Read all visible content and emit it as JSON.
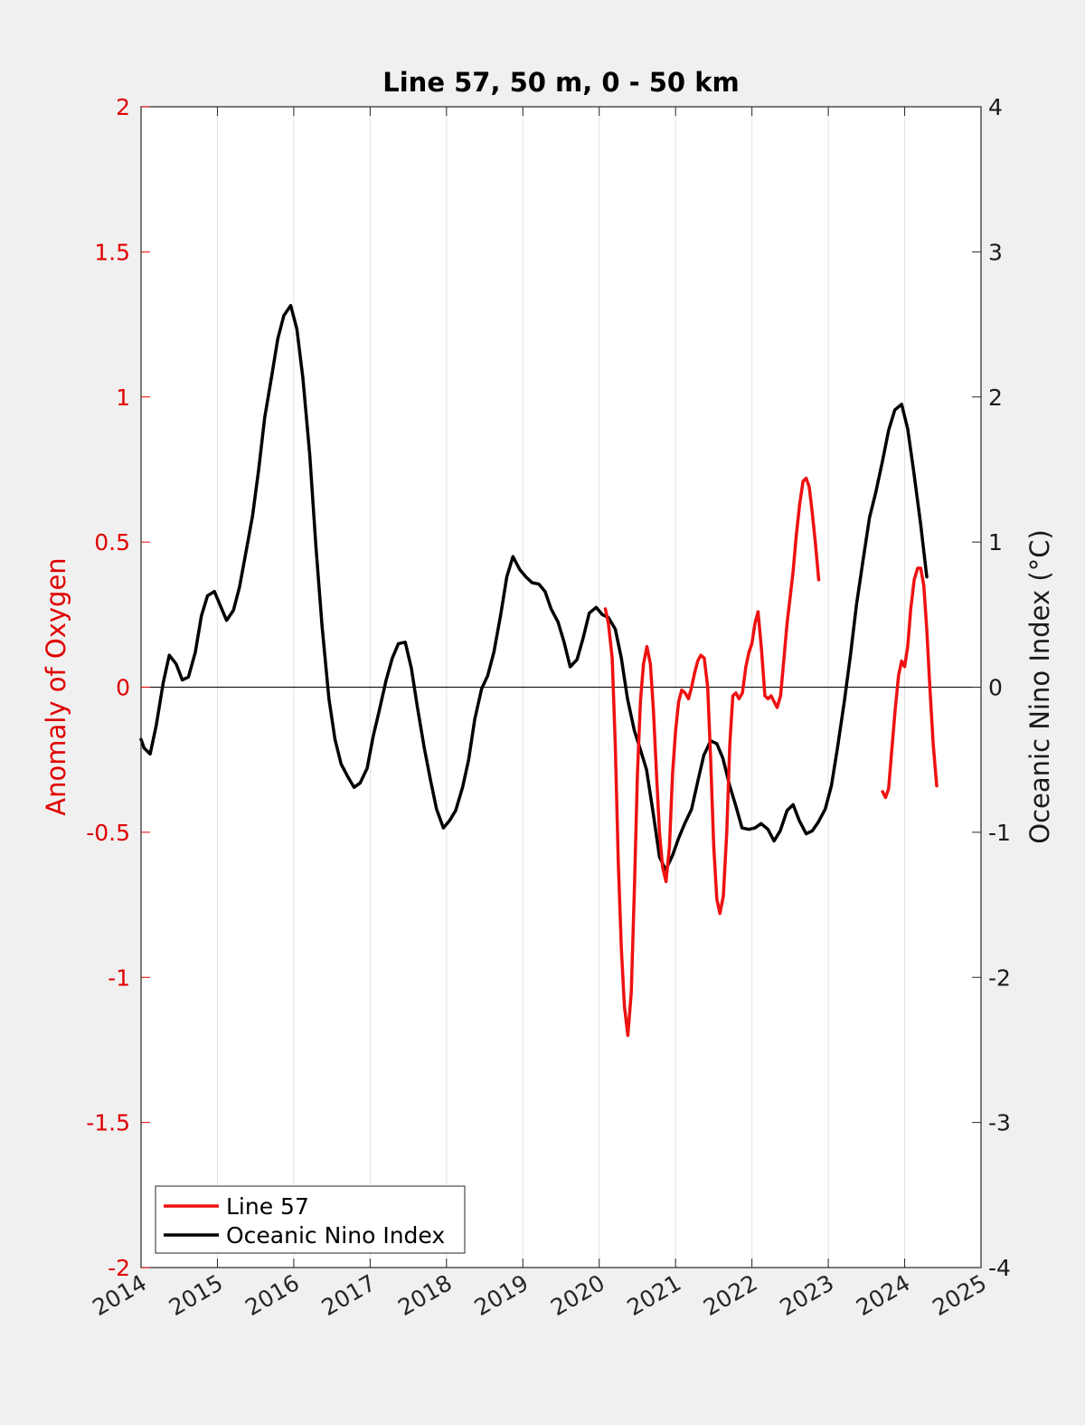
{
  "chart_data": {
    "type": "line",
    "title": "Line 57, 50 m, 0 - 50 km",
    "xlabel": "",
    "ylabel_left": "Anomaly of Oxygen",
    "ylabel_right": "Oceanic Nino Index (°C)",
    "xlim": [
      2014,
      2025
    ],
    "ylim_left": [
      -2,
      2
    ],
    "ylim_right": [
      -4,
      4
    ],
    "x_ticks": [
      "2014",
      "2015",
      "2016",
      "2017",
      "2018",
      "2019",
      "2020",
      "2021",
      "2022",
      "2023",
      "2024",
      "2025"
    ],
    "y_ticks_left": [
      "2",
      "1.5",
      "1",
      "0.5",
      "0",
      "-0.5",
      "-1",
      "-1.5",
      "-2"
    ],
    "y_ticks_right": [
      "4",
      "3",
      "2",
      "1",
      "0",
      "-1",
      "-2",
      "-3",
      "-4"
    ],
    "grid": "x-major",
    "zero_line": true,
    "legend": {
      "location": "bottom-left",
      "entries": [
        "Line 57",
        "Oceanic Nino Index"
      ]
    },
    "colors": {
      "line57": "#ee1111",
      "oni": "#000000",
      "left_axis": "#e00000",
      "right_axis": "#1a1a1a"
    },
    "series": [
      {
        "name": "Oceanic Nino Index",
        "axis": "right",
        "color": "#000000",
        "points": [
          [
            2014.0,
            -0.36
          ],
          [
            2014.04,
            -0.42
          ],
          [
            2014.12,
            -0.46
          ],
          [
            2014.2,
            -0.26
          ],
          [
            2014.29,
            0.03
          ],
          [
            2014.37,
            0.22
          ],
          [
            2014.46,
            0.16
          ],
          [
            2014.54,
            0.05
          ],
          [
            2014.62,
            0.07
          ],
          [
            2014.71,
            0.24
          ],
          [
            2014.79,
            0.49
          ],
          [
            2014.87,
            0.63
          ],
          [
            2014.96,
            0.66
          ],
          [
            2015.04,
            0.56
          ],
          [
            2015.12,
            0.46
          ],
          [
            2015.21,
            0.53
          ],
          [
            2015.29,
            0.69
          ],
          [
            2015.37,
            0.92
          ],
          [
            2015.46,
            1.18
          ],
          [
            2015.54,
            1.5
          ],
          [
            2015.62,
            1.86
          ],
          [
            2015.71,
            2.14
          ],
          [
            2015.79,
            2.4
          ],
          [
            2015.87,
            2.56
          ],
          [
            2015.96,
            2.63
          ],
          [
            2016.04,
            2.47
          ],
          [
            2016.12,
            2.13
          ],
          [
            2016.21,
            1.6
          ],
          [
            2016.29,
            0.97
          ],
          [
            2016.37,
            0.42
          ],
          [
            2016.46,
            -0.08
          ],
          [
            2016.54,
            -0.36
          ],
          [
            2016.62,
            -0.53
          ],
          [
            2016.71,
            -0.62
          ],
          [
            2016.79,
            -0.69
          ],
          [
            2016.87,
            -0.66
          ],
          [
            2016.96,
            -0.56
          ],
          [
            2017.04,
            -0.34
          ],
          [
            2017.12,
            -0.16
          ],
          [
            2017.21,
            0.05
          ],
          [
            2017.29,
            0.2
          ],
          [
            2017.37,
            0.3
          ],
          [
            2017.46,
            0.31
          ],
          [
            2017.54,
            0.13
          ],
          [
            2017.62,
            -0.14
          ],
          [
            2017.71,
            -0.42
          ],
          [
            2017.79,
            -0.64
          ],
          [
            2017.87,
            -0.84
          ],
          [
            2017.96,
            -0.97
          ],
          [
            2018.04,
            -0.92
          ],
          [
            2018.12,
            -0.85
          ],
          [
            2018.21,
            -0.69
          ],
          [
            2018.29,
            -0.5
          ],
          [
            2018.37,
            -0.22
          ],
          [
            2018.46,
            -0.01
          ],
          [
            2018.54,
            0.08
          ],
          [
            2018.62,
            0.24
          ],
          [
            2018.71,
            0.5
          ],
          [
            2018.79,
            0.76
          ],
          [
            2018.87,
            0.9
          ],
          [
            2018.96,
            0.81
          ],
          [
            2019.04,
            0.76
          ],
          [
            2019.12,
            0.72
          ],
          [
            2019.21,
            0.71
          ],
          [
            2019.29,
            0.66
          ],
          [
            2019.37,
            0.54
          ],
          [
            2019.46,
            0.45
          ],
          [
            2019.54,
            0.31
          ],
          [
            2019.62,
            0.14
          ],
          [
            2019.71,
            0.19
          ],
          [
            2019.79,
            0.34
          ],
          [
            2019.87,
            0.51
          ],
          [
            2019.96,
            0.55
          ],
          [
            2020.04,
            0.5
          ],
          [
            2020.12,
            0.48
          ],
          [
            2020.21,
            0.4
          ],
          [
            2020.29,
            0.2
          ],
          [
            2020.37,
            -0.08
          ],
          [
            2020.46,
            -0.3
          ],
          [
            2020.54,
            -0.43
          ],
          [
            2020.62,
            -0.57
          ],
          [
            2020.71,
            -0.88
          ],
          [
            2020.79,
            -1.17
          ],
          [
            2020.87,
            -1.26
          ],
          [
            2020.96,
            -1.16
          ],
          [
            2021.04,
            -1.04
          ],
          [
            2021.12,
            -0.94
          ],
          [
            2021.21,
            -0.84
          ],
          [
            2021.29,
            -0.65
          ],
          [
            2021.37,
            -0.47
          ],
          [
            2021.46,
            -0.37
          ],
          [
            2021.54,
            -0.39
          ],
          [
            2021.62,
            -0.49
          ],
          [
            2021.71,
            -0.68
          ],
          [
            2021.79,
            -0.82
          ],
          [
            2021.87,
            -0.97
          ],
          [
            2021.96,
            -0.98
          ],
          [
            2022.04,
            -0.97
          ],
          [
            2022.12,
            -0.94
          ],
          [
            2022.21,
            -0.98
          ],
          [
            2022.29,
            -1.06
          ],
          [
            2022.37,
            -0.99
          ],
          [
            2022.46,
            -0.85
          ],
          [
            2022.54,
            -0.81
          ],
          [
            2022.62,
            -0.92
          ],
          [
            2022.71,
            -1.01
          ],
          [
            2022.79,
            -0.99
          ],
          [
            2022.87,
            -0.93
          ],
          [
            2022.96,
            -0.84
          ],
          [
            2023.04,
            -0.68
          ],
          [
            2023.12,
            -0.42
          ],
          [
            2023.21,
            -0.1
          ],
          [
            2023.29,
            0.22
          ],
          [
            2023.37,
            0.57
          ],
          [
            2023.46,
            0.89
          ],
          [
            2023.54,
            1.17
          ],
          [
            2023.62,
            1.34
          ],
          [
            2023.71,
            1.56
          ],
          [
            2023.79,
            1.77
          ],
          [
            2023.87,
            1.91
          ],
          [
            2023.96,
            1.95
          ],
          [
            2024.04,
            1.78
          ],
          [
            2024.12,
            1.48
          ],
          [
            2024.21,
            1.12
          ],
          [
            2024.29,
            0.76
          ]
        ]
      },
      {
        "name": "Line 57",
        "axis": "left",
        "color": "#ee1111",
        "segments": [
          [
            [
              2020.08,
              0.27
            ],
            [
              2020.12,
              0.22
            ],
            [
              2020.17,
              0.1
            ],
            [
              2020.21,
              -0.2
            ],
            [
              2020.25,
              -0.6
            ],
            [
              2020.29,
              -0.9
            ],
            [
              2020.33,
              -1.1
            ],
            [
              2020.375,
              -1.2
            ],
            [
              2020.42,
              -1.05
            ],
            [
              2020.46,
              -0.7
            ],
            [
              2020.5,
              -0.3
            ],
            [
              2020.54,
              -0.05
            ],
            [
              2020.58,
              0.08
            ],
            [
              2020.625,
              0.14
            ],
            [
              2020.67,
              0.08
            ],
            [
              2020.71,
              -0.08
            ],
            [
              2020.75,
              -0.3
            ],
            [
              2020.79,
              -0.5
            ],
            [
              2020.83,
              -0.62
            ],
            [
              2020.875,
              -0.67
            ],
            [
              2020.92,
              -0.55
            ],
            [
              2020.96,
              -0.3
            ],
            [
              2021.0,
              -0.15
            ],
            [
              2021.04,
              -0.05
            ],
            [
              2021.08,
              -0.01
            ],
            [
              2021.125,
              -0.02
            ],
            [
              2021.17,
              -0.04
            ],
            [
              2021.21,
              0.0
            ],
            [
              2021.25,
              0.05
            ],
            [
              2021.29,
              0.09
            ],
            [
              2021.33,
              0.11
            ],
            [
              2021.375,
              0.1
            ],
            [
              2021.42,
              0.0
            ],
            [
              2021.46,
              -0.25
            ],
            [
              2021.5,
              -0.55
            ],
            [
              2021.54,
              -0.73
            ],
            [
              2021.58,
              -0.78
            ],
            [
              2021.625,
              -0.72
            ],
            [
              2021.67,
              -0.5
            ],
            [
              2021.71,
              -0.2
            ],
            [
              2021.75,
              -0.03
            ],
            [
              2021.79,
              -0.02
            ],
            [
              2021.83,
              -0.04
            ],
            [
              2021.875,
              -0.02
            ],
            [
              2021.92,
              0.07
            ],
            [
              2021.96,
              0.12
            ],
            [
              2022.0,
              0.15
            ],
            [
              2022.04,
              0.22
            ],
            [
              2022.08,
              0.26
            ],
            [
              2022.125,
              0.13
            ],
            [
              2022.17,
              -0.03
            ],
            [
              2022.21,
              -0.04
            ],
            [
              2022.25,
              -0.03
            ],
            [
              2022.29,
              -0.05
            ],
            [
              2022.33,
              -0.07
            ],
            [
              2022.375,
              -0.03
            ],
            [
              2022.42,
              0.1
            ],
            [
              2022.46,
              0.22
            ],
            [
              2022.5,
              0.31
            ],
            [
              2022.54,
              0.4
            ],
            [
              2022.58,
              0.52
            ],
            [
              2022.625,
              0.63
            ],
            [
              2022.67,
              0.71
            ],
            [
              2022.71,
              0.72
            ],
            [
              2022.75,
              0.69
            ],
            [
              2022.79,
              0.6
            ],
            [
              2022.83,
              0.5
            ],
            [
              2022.875,
              0.37
            ]
          ],
          [
            [
              2023.71,
              -0.36
            ],
            [
              2023.75,
              -0.38
            ],
            [
              2023.79,
              -0.35
            ],
            [
              2023.83,
              -0.22
            ],
            [
              2023.875,
              -0.08
            ],
            [
              2023.92,
              0.04
            ],
            [
              2023.96,
              0.09
            ],
            [
              2024.0,
              0.07
            ],
            [
              2024.04,
              0.14
            ],
            [
              2024.08,
              0.27
            ],
            [
              2024.125,
              0.37
            ],
            [
              2024.17,
              0.41
            ],
            [
              2024.21,
              0.41
            ],
            [
              2024.25,
              0.35
            ],
            [
              2024.29,
              0.2
            ],
            [
              2024.33,
              0.0
            ],
            [
              2024.375,
              -0.2
            ],
            [
              2024.42,
              -0.34
            ]
          ]
        ]
      }
    ]
  }
}
